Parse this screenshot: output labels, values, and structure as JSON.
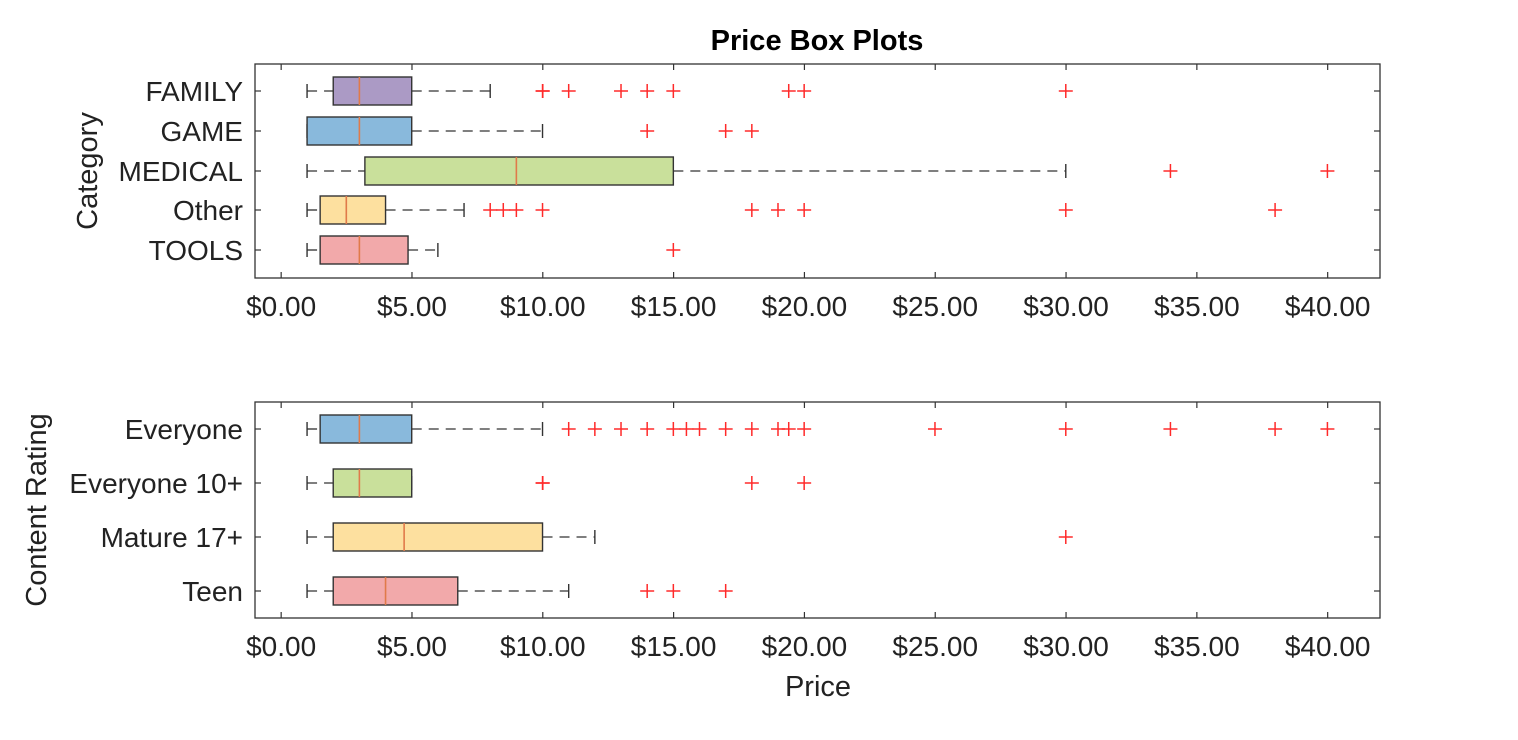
{
  "title": "Price Box Plots",
  "chart_data": [
    {
      "type": "boxplot",
      "orientation": "horizontal",
      "ylabel": "Category",
      "xlabel": "",
      "xlim": [
        -1,
        42
      ],
      "xticks": [
        0,
        5,
        10,
        15,
        20,
        25,
        30,
        35,
        40
      ],
      "xtick_labels": [
        "$0.00",
        "$5.00",
        "$10.00",
        "$15.00",
        "$20.00",
        "$25.00",
        "$30.00",
        "$35.00",
        "$40.00"
      ],
      "categories": [
        "FAMILY",
        "GAME",
        "MEDICAL",
        "Other",
        "TOOLS"
      ],
      "boxes": [
        {
          "label": "FAMILY",
          "whisker_low": 0.99,
          "q1": 1.99,
          "median": 2.99,
          "q3": 4.99,
          "whisker_high": 7.99,
          "color": "#ab9ac5",
          "outliers": [
            9.99,
            10.0,
            10.99,
            12.99,
            13.99,
            14.99,
            19.4,
            19.99,
            29.99
          ]
        },
        {
          "label": "GAME",
          "whisker_low": 0.99,
          "q1": 0.99,
          "median": 2.99,
          "q3": 4.99,
          "whisker_high": 9.99,
          "color": "#89b9dc",
          "outliers": [
            13.99,
            16.99,
            17.99
          ]
        },
        {
          "label": "MEDICAL",
          "whisker_low": 0.99,
          "q1": 3.2,
          "median": 8.99,
          "q3": 14.99,
          "whisker_high": 29.99,
          "color": "#c9e09b",
          "outliers": [
            33.99,
            39.99
          ]
        },
        {
          "label": "Other",
          "whisker_low": 0.99,
          "q1": 1.49,
          "median": 2.49,
          "q3": 3.99,
          "whisker_high": 6.99,
          "color": "#fde09f",
          "outliers": [
            7.99,
            8.49,
            8.99,
            9.99,
            17.99,
            18.99,
            19.99,
            29.99,
            37.99
          ]
        },
        {
          "label": "TOOLS",
          "whisker_low": 0.99,
          "q1": 1.49,
          "median": 2.99,
          "q3": 4.85,
          "whisker_high": 5.99,
          "color": "#f2a9aa",
          "outliers": [
            14.99
          ]
        }
      ]
    },
    {
      "type": "boxplot",
      "orientation": "horizontal",
      "ylabel": "Content Rating",
      "xlabel": "Price",
      "xlim": [
        -1,
        42
      ],
      "xticks": [
        0,
        5,
        10,
        15,
        20,
        25,
        30,
        35,
        40
      ],
      "xtick_labels": [
        "$0.00",
        "$5.00",
        "$10.00",
        "$15.00",
        "$20.00",
        "$25.00",
        "$30.00",
        "$35.00",
        "$40.00"
      ],
      "categories": [
        "Everyone",
        "Everyone 10+",
        "Mature 17+",
        "Teen"
      ],
      "boxes": [
        {
          "label": "Everyone",
          "whisker_low": 0.99,
          "q1": 1.49,
          "median": 2.99,
          "q3": 4.99,
          "whisker_high": 9.99,
          "color": "#89b9dc",
          "outliers": [
            10.99,
            11.99,
            12.99,
            13.99,
            14.99,
            15.49,
            15.99,
            16.99,
            17.99,
            18.99,
            19.4,
            19.99,
            24.99,
            29.99,
            33.99,
            37.99,
            39.99
          ]
        },
        {
          "label": "Everyone 10+",
          "whisker_low": 0.99,
          "q1": 1.99,
          "median": 2.99,
          "q3": 4.99,
          "whisker_high": 4.99,
          "color": "#c9e09b",
          "outliers": [
            9.99,
            10.0,
            17.99,
            19.99
          ]
        },
        {
          "label": "Mature 17+",
          "whisker_low": 0.99,
          "q1": 1.99,
          "median": 4.7,
          "q3": 9.99,
          "whisker_high": 11.99,
          "color": "#fde09f",
          "outliers": [
            29.99
          ]
        },
        {
          "label": "Teen",
          "whisker_low": 0.99,
          "q1": 1.99,
          "median": 3.99,
          "q3": 6.75,
          "whisker_high": 10.99,
          "color": "#f2a9aa",
          "outliers": [
            13.99,
            14.99,
            16.99
          ]
        }
      ]
    }
  ]
}
